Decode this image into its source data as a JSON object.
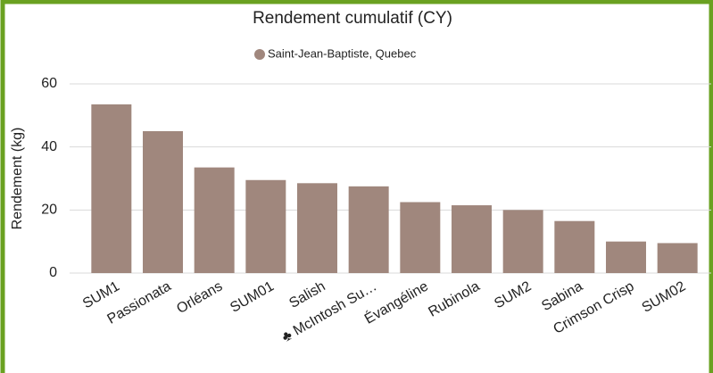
{
  "chart_data": {
    "type": "bar",
    "title": "Rendement cumulatif (CY)",
    "y_label": "Rendement (kg)",
    "categories": [
      "SUM1",
      "Passionata",
      "Orléans",
      "SUM01",
      "Salish",
      "♣ McIntosh Su…",
      "Évangéline",
      "Rubinola",
      "SUM2",
      "Sabina",
      "Crimson Crisp",
      "SUM02"
    ],
    "series": [
      {
        "name": "Saint-Jean-Baptiste, Quebec",
        "color": "#a0877d",
        "values": [
          53.5,
          45,
          33.5,
          29.5,
          28.5,
          27.5,
          22.5,
          21.5,
          20,
          16.5,
          10,
          9.5
        ]
      }
    ],
    "ylim": [
      0,
      60
    ],
    "yticks": [
      0,
      20,
      40,
      60
    ],
    "grid": true
  }
}
